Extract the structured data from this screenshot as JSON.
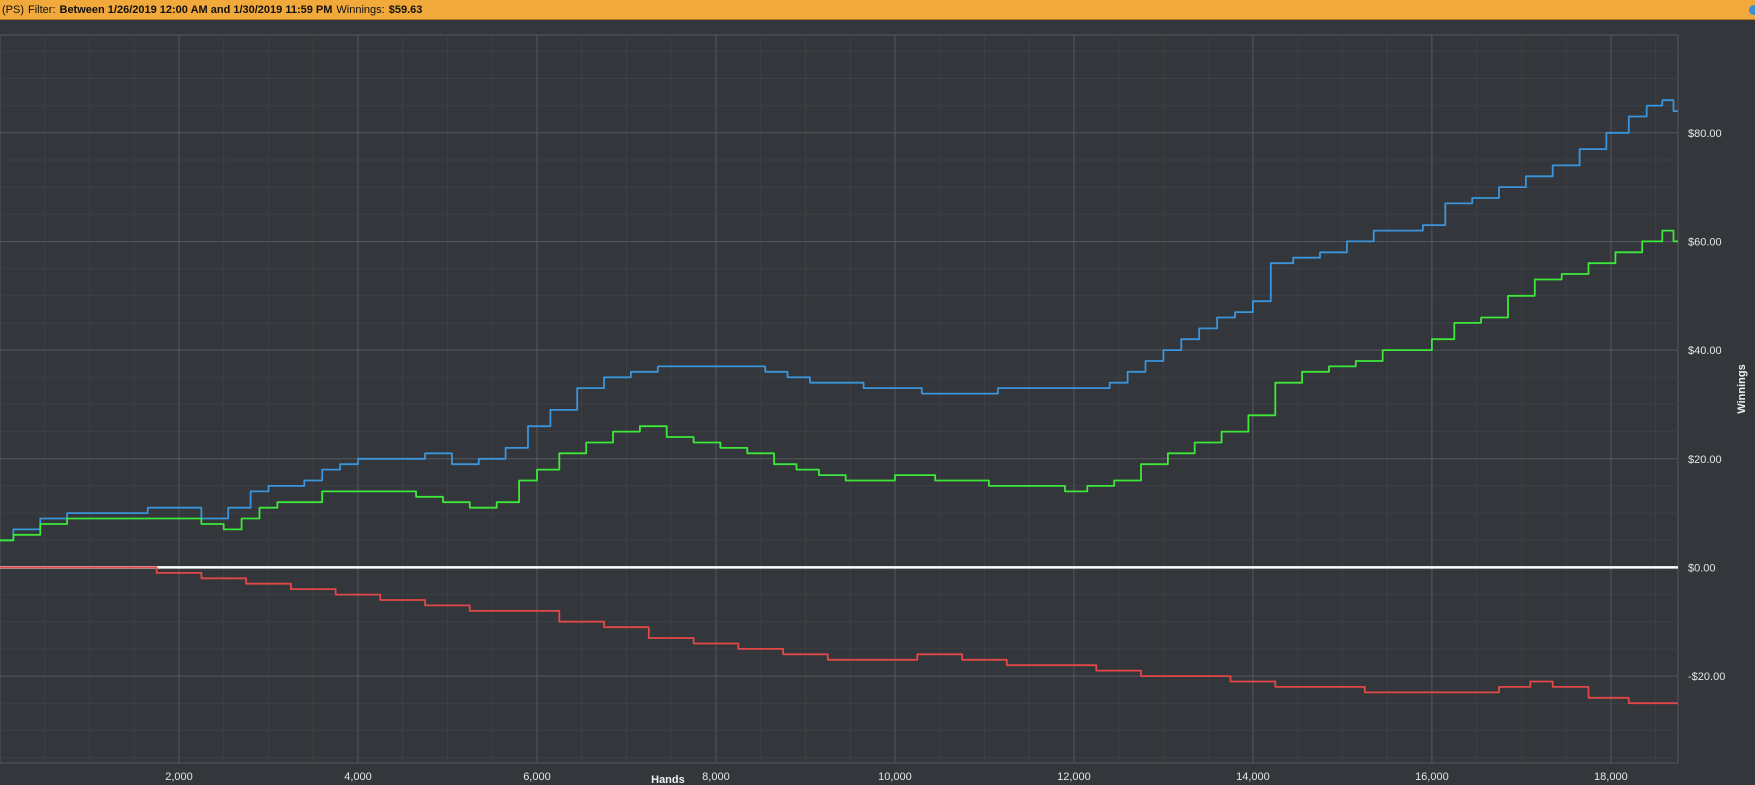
{
  "header": {
    "site": "(PS)",
    "filter_label": "Filter:",
    "filter_value": "Between 1/26/2019 12:00 AM and 1/30/2019 11:59 PM",
    "winnings_label": "Winnings:",
    "winnings_value": "$59.63"
  },
  "chart_data": {
    "type": "line",
    "xlabel": "Hands",
    "ylabel": "Winnings",
    "xlim": [
      0,
      18750
    ],
    "ylim": [
      -36,
      98
    ],
    "x_ticks": [
      2000,
      4000,
      6000,
      8000,
      10000,
      12000,
      14000,
      16000,
      18000
    ],
    "x_tick_labels": [
      "2,000",
      "4,000",
      "6,000",
      "8,000",
      "10,000",
      "12,000",
      "14,000",
      "16,000",
      "18,000"
    ],
    "y_ticks": [
      -20,
      0,
      20,
      40,
      60,
      80
    ],
    "y_tick_labels": [
      "-$20.00",
      "$0.00",
      "$20.00",
      "$40.00",
      "$60.00",
      "$80.00"
    ],
    "grid": true,
    "colors": {
      "background": "#33363a",
      "grid_major": "#54585d",
      "grid_minor": "#3d4045",
      "zero_line": "#ffffff",
      "series_blue": "#3a95dc",
      "series_green": "#3ee83a",
      "series_red": "#e24848"
    },
    "series": [
      {
        "color": "#3a95dc",
        "x": [
          0,
          300,
          600,
          900,
          1200,
          1500,
          1800,
          2100,
          2400,
          2700,
          2900,
          3100,
          3300,
          3500,
          3700,
          3900,
          4100,
          4300,
          4600,
          4900,
          5200,
          5500,
          5800,
          6000,
          6300,
          6600,
          6900,
          7200,
          7500,
          7800,
          8100,
          8400,
          8700,
          8900,
          9200,
          9500,
          9800,
          10000,
          10200,
          10400,
          10700,
          11000,
          11300,
          11600,
          11900,
          12100,
          12300,
          12500,
          12700,
          12900,
          13100,
          13300,
          13500,
          13700,
          13900,
          14100,
          14300,
          14600,
          14900,
          15200,
          15500,
          15800,
          16000,
          16300,
          16600,
          16900,
          17200,
          17500,
          17800,
          18100,
          18300,
          18500,
          18650,
          18750
        ],
        "y": [
          5,
          7,
          9,
          10,
          10,
          10,
          11,
          11,
          9,
          11,
          14,
          15,
          15,
          16,
          18,
          19,
          20,
          20,
          20,
          21,
          19,
          20,
          22,
          26,
          29,
          33,
          35,
          36,
          37,
          37,
          37,
          37,
          36,
          35,
          34,
          34,
          33,
          33,
          33,
          32,
          32,
          32,
          33,
          33,
          33,
          33,
          33,
          34,
          36,
          38,
          40,
          42,
          44,
          46,
          47,
          49,
          56,
          57,
          58,
          60,
          62,
          62,
          63,
          67,
          68,
          70,
          72,
          74,
          77,
          80,
          83,
          85,
          86,
          84
        ]
      },
      {
        "color": "#3ee83a",
        "x": [
          0,
          300,
          600,
          900,
          1200,
          1500,
          1800,
          2100,
          2400,
          2600,
          2800,
          3000,
          3200,
          3500,
          3700,
          3900,
          4200,
          4500,
          4800,
          5100,
          5400,
          5700,
          5900,
          6100,
          6400,
          6700,
          7000,
          7300,
          7600,
          7900,
          8200,
          8500,
          8800,
          9000,
          9300,
          9600,
          9900,
          10100,
          10300,
          10600,
          10900,
          11200,
          11500,
          11800,
          12000,
          12300,
          12600,
          12900,
          13200,
          13500,
          13800,
          14100,
          14400,
          14700,
          15000,
          15300,
          15600,
          15900,
          16100,
          16400,
          16700,
          17000,
          17300,
          17600,
          17900,
          18200,
          18500,
          18650,
          18750
        ],
        "y": [
          5,
          6,
          8,
          9,
          9,
          9,
          9,
          9,
          8,
          7,
          9,
          11,
          12,
          12,
          14,
          14,
          14,
          14,
          13,
          12,
          11,
          12,
          16,
          18,
          21,
          23,
          25,
          26,
          24,
          23,
          22,
          21,
          19,
          18,
          17,
          16,
          16,
          17,
          17,
          16,
          16,
          15,
          15,
          15,
          14,
          15,
          16,
          19,
          21,
          23,
          25,
          28,
          34,
          36,
          37,
          38,
          40,
          40,
          42,
          45,
          46,
          50,
          53,
          54,
          56,
          58,
          60,
          62,
          60
        ]
      },
      {
        "color": "#e24848",
        "x": [
          0,
          500,
          1000,
          1500,
          2000,
          2500,
          3000,
          3500,
          4000,
          4500,
          5000,
          5500,
          6000,
          6500,
          7000,
          7500,
          8000,
          8500,
          9000,
          9500,
          10000,
          10500,
          11000,
          11500,
          12000,
          12500,
          13000,
          13500,
          14000,
          14500,
          15000,
          15500,
          16000,
          16500,
          17000,
          17200,
          17500,
          18000,
          18400,
          18750
        ],
        "y": [
          0,
          0,
          0,
          0,
          -1,
          -2,
          -3,
          -4,
          -5,
          -6,
          -7,
          -8,
          -8,
          -10,
          -11,
          -13,
          -14,
          -15,
          -16,
          -17,
          -17,
          -16,
          -17,
          -18,
          -18,
          -19,
          -20,
          -20,
          -21,
          -22,
          -22,
          -23,
          -23,
          -23,
          -22,
          -21,
          -22,
          -24,
          -25,
          -25
        ]
      }
    ]
  }
}
